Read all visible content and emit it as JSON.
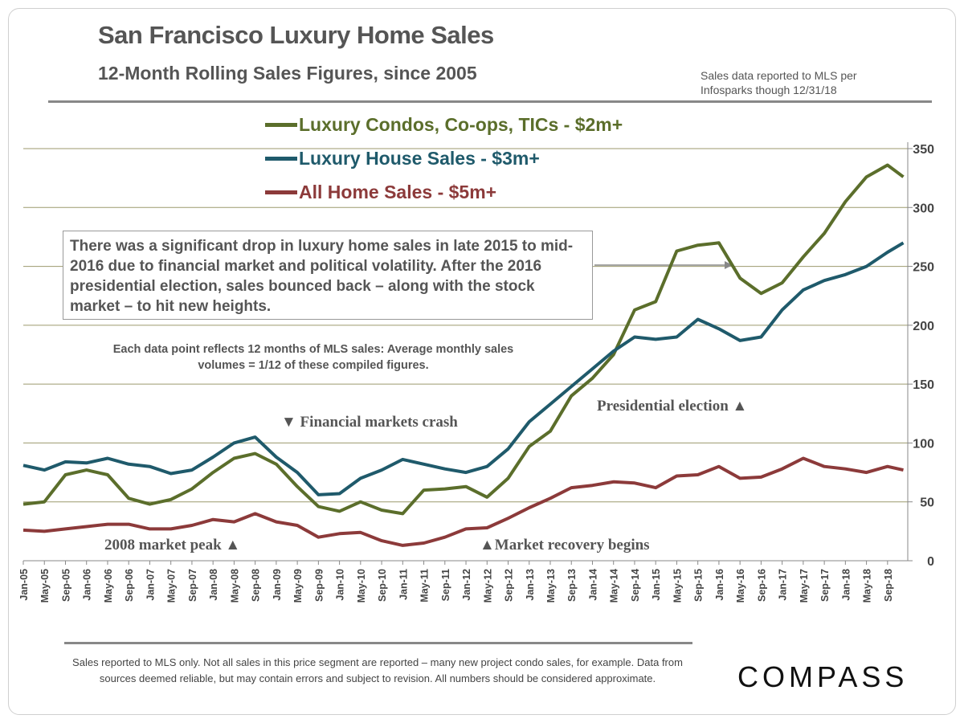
{
  "header": {
    "title": "San Francisco Luxury Home Sales",
    "subtitle": "12-Month Rolling Sales Figures, since 2005",
    "source_line1": "Sales data reported to MLS per",
    "source_line2": "Infosparks though 12/31/18"
  },
  "note_box": "There was a significant drop in luxury home sales in late 2015 to mid-2016 due to financial market and political volatility. After the 2016 presidential election, sales bounced back – along with the stock market – to hit new heights.",
  "note_small": "Each data point reflects 12 months of MLS sales:  Average monthly sales volumes = 1/12 of these compiled figures.",
  "annotations": {
    "crash": "▼ Financial markets crash",
    "peak": "2008 market peak ▲",
    "recovery": "▲Market recovery begins",
    "election": "Presidential election ▲"
  },
  "footer": {
    "text": "Sales reported to MLS only.  Not all sales in this price segment are reported – many new project condo sales, for example. Data from sources deemed reliable, but may contain errors and subject to revision. All numbers should be considered approximate.",
    "logo": "COMPASS"
  },
  "chart_data": {
    "type": "line",
    "title": "San Francisco Luxury Home Sales",
    "subtitle": "12-Month Rolling Sales Figures, since 2005",
    "xlabel": "",
    "ylabel": "",
    "ylim": [
      0,
      350
    ],
    "yticks": [
      0,
      50,
      100,
      150,
      200,
      250,
      300,
      350
    ],
    "grid": true,
    "legend": "top-center",
    "x": [
      "Jan-05",
      "May-05",
      "Sep-05",
      "Jan-06",
      "May-06",
      "Sep-06",
      "Jan-07",
      "May-07",
      "Sep-07",
      "Jan-08",
      "May-08",
      "Sep-08",
      "Jan-09",
      "May-09",
      "Sep-09",
      "Jan-10",
      "May-10",
      "Sep-10",
      "Jan-11",
      "May-11",
      "Sep-11",
      "Jan-12",
      "May-12",
      "Sep-12",
      "Jan-13",
      "May-13",
      "Sep-13",
      "Jan-14",
      "May-14",
      "Sep-14",
      "Jan-15",
      "May-15",
      "Sep-15",
      "Jan-16",
      "May-16",
      "Sep-16",
      "Jan-17",
      "May-17",
      "Sep-17",
      "Jan-18",
      "May-18",
      "Sep-18",
      "Dec-18"
    ],
    "xtick_labels": [
      "Jan-05",
      "May-05",
      "Sep-05",
      "Jan-06",
      "May-06",
      "Sep-06",
      "Jan-07",
      "May-07",
      "Sep-07",
      "Jan-08",
      "May-08",
      "Sep-08",
      "Jan-09",
      "May-09",
      "Sep-09",
      "Jan-10",
      "May-10",
      "Sep-10",
      "Jan-11",
      "May-11",
      "Sep-11",
      "Jan-12",
      "May-12",
      "Sep-12",
      "Jan-13",
      "May-13",
      "Sep-13",
      "Jan-14",
      "May-14",
      "Sep-14",
      "Jan-15",
      "May-15",
      "Sep-15",
      "Jan-16",
      "May-16",
      "Sep-16",
      "Jan-17",
      "May-17",
      "Sep-17",
      "Jan-18",
      "May-18",
      "Sep-18"
    ],
    "series": [
      {
        "name": "Luxury Condos, Co-ops, TICs - $2m+",
        "color": "#5b6e2b",
        "values": [
          48,
          50,
          73,
          77,
          73,
          53,
          48,
          52,
          61,
          75,
          87,
          91,
          82,
          63,
          46,
          42,
          50,
          43,
          40,
          60,
          61,
          63,
          54,
          70,
          97,
          110,
          140,
          155,
          175,
          213,
          220,
          263,
          268,
          270,
          240,
          227,
          236,
          258,
          278,
          305,
          326,
          336,
          326
        ]
      },
      {
        "name": "Luxury House Sales - $3m+",
        "color": "#1f5a6b",
        "values": [
          81,
          77,
          84,
          83,
          87,
          82,
          80,
          74,
          77,
          88,
          100,
          105,
          88,
          75,
          56,
          57,
          70,
          77,
          86,
          82,
          78,
          75,
          80,
          95,
          118,
          133,
          148,
          163,
          178,
          190,
          188,
          190,
          205,
          197,
          187,
          190,
          213,
          230,
          238,
          243,
          250,
          262,
          270
        ]
      },
      {
        "name": "All Home Sales - $5m+",
        "color": "#8c3a3a",
        "values": [
          26,
          25,
          27,
          29,
          31,
          31,
          27,
          27,
          30,
          35,
          33,
          40,
          33,
          30,
          20,
          23,
          24,
          17,
          13,
          15,
          20,
          27,
          28,
          36,
          45,
          53,
          62,
          64,
          67,
          66,
          62,
          72,
          73,
          80,
          70,
          71,
          78,
          87,
          80,
          78,
          75,
          80,
          77
        ]
      }
    ]
  }
}
